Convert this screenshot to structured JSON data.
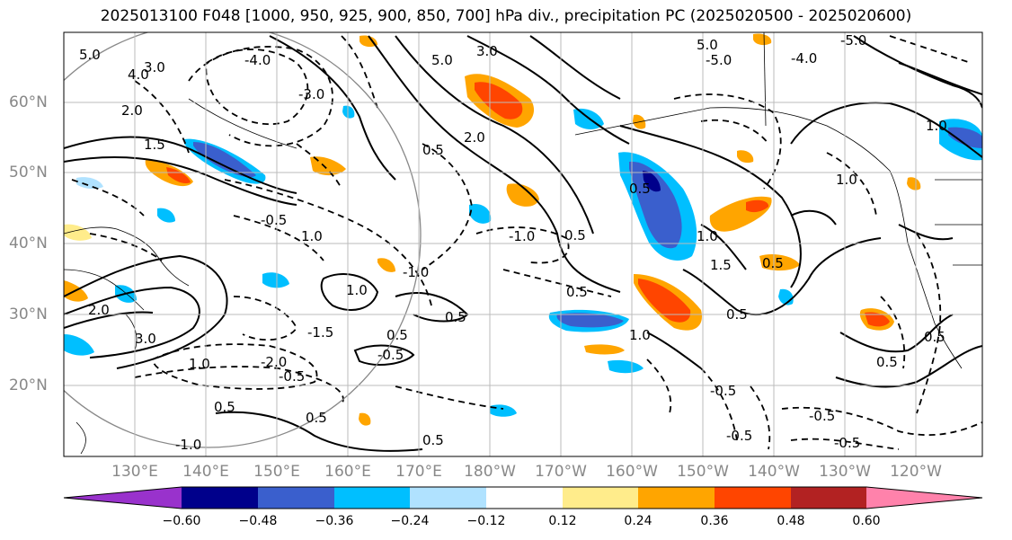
{
  "title": "2025013100 F048 [1000, 950, 925, 900, 850, 700] hPa div., precipitation PC (2025020500 - 2025020600)",
  "lat_labels": [
    "60°N",
    "50°N",
    "40°N",
    "30°N",
    "20°N"
  ],
  "lon_labels": [
    "130°E",
    "140°E",
    "150°E",
    "160°E",
    "170°E",
    "180°W",
    "170°W",
    "160°W",
    "150°W",
    "140°W",
    "130°W",
    "120°W"
  ],
  "colorbar": {
    "colors": [
      "#9932cc",
      "#00008b",
      "#3a5fcd",
      "#00bfff",
      "#b0e2ff",
      "#ffffff",
      "#ffec8b",
      "#ffa500",
      "#ff4500",
      "#b22222",
      "#ff82ab"
    ],
    "tick_labels": [
      "−0.60",
      "−0.48",
      "−0.36",
      "−0.24",
      "−0.12",
      "0.12",
      "0.24",
      "0.36",
      "0.48",
      "0.60"
    ]
  },
  "contour_labels": [
    "5.0",
    "4.0",
    "3.0",
    "2.0",
    "1.5",
    "1.0",
    "0.5",
    "-0.5",
    "-1.0",
    "-1.5",
    "-2.0",
    "-3.0",
    "-4.0",
    "-5.0"
  ]
}
